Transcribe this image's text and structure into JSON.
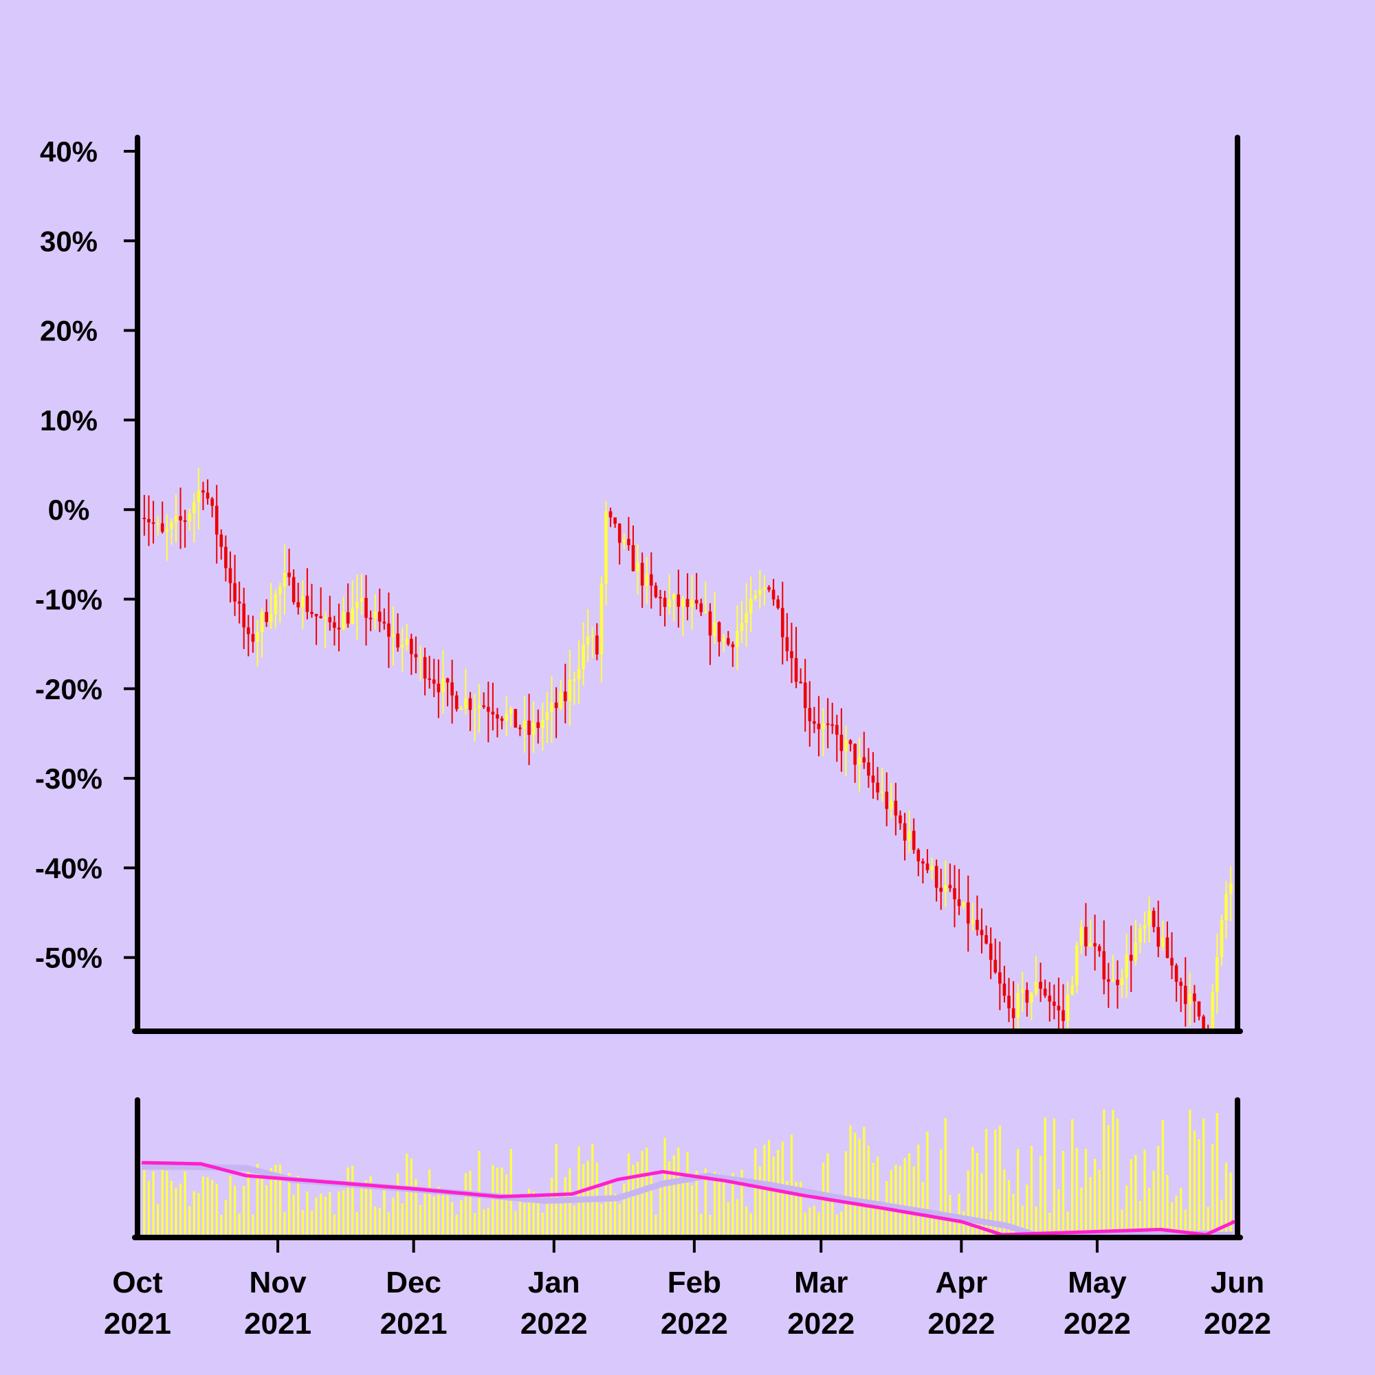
{
  "chart_data": [
    {
      "type": "candlestick",
      "panel": "price",
      "y_unit": "%",
      "yticks": [
        "40%",
        "30%",
        "20%",
        "10%",
        "0%",
        "-10%",
        "-20%",
        "-30%",
        "-40%",
        "-50%"
      ],
      "ytick_values": [
        40,
        30,
        20,
        10,
        0,
        -10,
        -20,
        -30,
        -40,
        -50
      ],
      "ylim": [
        -58,
        42
      ],
      "xlim": [
        "2021-10-01",
        "2022-06-01"
      ],
      "xticks": [
        {
          "date": "2021-10-01",
          "month": "Oct",
          "year": "2021"
        },
        {
          "date": "2021-11-01",
          "month": "Nov",
          "year": "2021"
        },
        {
          "date": "2021-12-01",
          "month": "Dec",
          "year": "2021"
        },
        {
          "date": "2022-01-01",
          "month": "Jan",
          "year": "2022"
        },
        {
          "date": "2022-02-01",
          "month": "Feb",
          "year": "2022"
        },
        {
          "date": "2022-03-01",
          "month": "Mar",
          "year": "2022"
        },
        {
          "date": "2022-04-01",
          "month": "Apr",
          "year": "2022"
        },
        {
          "date": "2022-05-01",
          "month": "May",
          "year": "2022"
        },
        {
          "date": "2022-06-01",
          "month": "Jun",
          "year": "2022"
        }
      ],
      "up_color": "#ffff44",
      "down_color": "#ee0000",
      "close_path": [
        {
          "date": "2021-10-01",
          "close": 1
        },
        {
          "date": "2021-10-07",
          "close": -3
        },
        {
          "date": "2021-10-12",
          "close": -1
        },
        {
          "date": "2021-10-16",
          "close": 3
        },
        {
          "date": "2021-10-26",
          "close": -15
        },
        {
          "date": "2021-11-03",
          "close": -8
        },
        {
          "date": "2021-11-12",
          "close": -13
        },
        {
          "date": "2021-11-20",
          "close": -11
        },
        {
          "date": "2021-12-01",
          "close": -16
        },
        {
          "date": "2021-12-10",
          "close": -21
        },
        {
          "date": "2021-12-19",
          "close": -22
        },
        {
          "date": "2021-12-27",
          "close": -25
        },
        {
          "date": "2022-01-04",
          "close": -21
        },
        {
          "date": "2022-01-09",
          "close": -14
        },
        {
          "date": "2022-01-11",
          "close": -16
        },
        {
          "date": "2022-01-13",
          "close": -1
        },
        {
          "date": "2022-01-24",
          "close": -10
        },
        {
          "date": "2022-02-01",
          "close": -11
        },
        {
          "date": "2022-02-09",
          "close": -15
        },
        {
          "date": "2022-02-18",
          "close": -8
        },
        {
          "date": "2022-02-27",
          "close": -23
        },
        {
          "date": "2022-03-08",
          "close": -27
        },
        {
          "date": "2022-03-15",
          "close": -32
        },
        {
          "date": "2022-03-25",
          "close": -40
        },
        {
          "date": "2022-04-05",
          "close": -47
        },
        {
          "date": "2022-04-12",
          "close": -56
        },
        {
          "date": "2022-04-19",
          "close": -53
        },
        {
          "date": "2022-04-24",
          "close": -57
        },
        {
          "date": "2022-04-28",
          "close": -47
        },
        {
          "date": "2022-05-05",
          "close": -53
        },
        {
          "date": "2022-05-13",
          "close": -46
        },
        {
          "date": "2022-05-22",
          "close": -55
        },
        {
          "date": "2022-05-26",
          "close": -58
        },
        {
          "date": "2022-05-30",
          "close": -43
        },
        {
          "date": "2022-06-01",
          "close": -40
        }
      ]
    },
    {
      "type": "bar",
      "panel": "volume",
      "bar_color": "#ffff44",
      "series": [
        {
          "kind": "moving-average",
          "color": "#ff1fcf"
        },
        {
          "kind": "moving-average",
          "color": "#c7b5f3"
        }
      ],
      "ma_level_path": [
        {
          "date": "2021-10-01",
          "level": 0.55
        },
        {
          "date": "2021-10-15",
          "level": 0.54
        },
        {
          "date": "2021-10-25",
          "level": 0.45
        },
        {
          "date": "2021-11-05",
          "level": 0.42
        },
        {
          "date": "2021-12-01",
          "level": 0.35
        },
        {
          "date": "2021-12-20",
          "level": 0.29
        },
        {
          "date": "2022-01-05",
          "level": 0.31
        },
        {
          "date": "2022-01-15",
          "level": 0.42
        },
        {
          "date": "2022-01-25",
          "level": 0.48
        },
        {
          "date": "2022-02-08",
          "level": 0.41
        },
        {
          "date": "2022-02-25",
          "level": 0.3
        },
        {
          "date": "2022-03-15",
          "level": 0.2
        },
        {
          "date": "2022-04-01",
          "level": 0.1
        },
        {
          "date": "2022-04-10",
          "level": 0.0
        },
        {
          "date": "2022-05-15",
          "level": 0.04
        },
        {
          "date": "2022-05-25",
          "level": 0.0
        },
        {
          "date": "2022-06-01",
          "level": 0.11
        }
      ]
    }
  ]
}
